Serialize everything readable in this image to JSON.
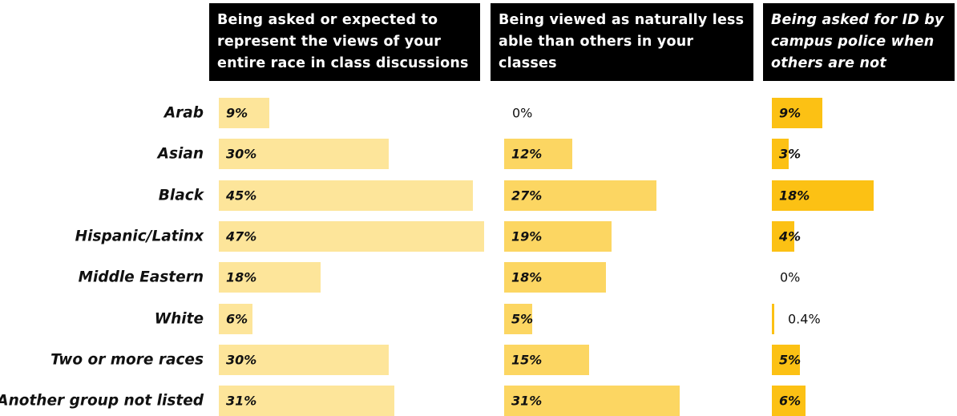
{
  "chart_data": {
    "type": "bar",
    "orientation": "horizontal",
    "categories": [
      "Arab",
      "Asian",
      "Black",
      "Hispanic/Latinx",
      "Middle Eastern",
      "White",
      "Two or more races",
      "Another group not listed"
    ],
    "series": [
      {
        "name": "Being asked or expected to represent the views of your entire race in class discussions",
        "color": "#fde59a",
        "values": [
          9,
          30,
          45,
          47,
          18,
          6,
          30,
          31
        ],
        "value_labels": [
          "9%",
          "30%",
          "45%",
          "47%",
          "18%",
          "6%",
          "30%",
          "31%"
        ]
      },
      {
        "name": "Being viewed as naturally less able than others in your classes",
        "color": "#fcd662",
        "values": [
          0,
          12,
          27,
          19,
          18,
          5,
          15,
          31
        ],
        "value_labels": [
          "0%",
          "12%",
          "27%",
          "19%",
          "18%",
          "5%",
          "15%",
          "31%"
        ]
      },
      {
        "name": "Being asked for ID by campus police when others are not",
        "color": "#fcc114",
        "italic_header": true,
        "values": [
          9,
          3,
          18,
          4,
          0,
          0.4,
          5,
          6
        ],
        "value_labels": [
          "9%",
          "3%",
          "18%",
          "4%",
          "0%",
          "0.4%",
          "5%",
          "6%"
        ]
      }
    ]
  }
}
